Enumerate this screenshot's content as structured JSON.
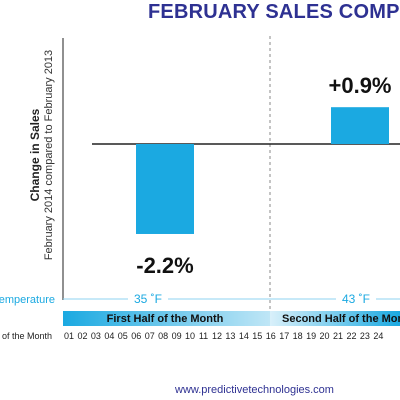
{
  "chart_data": {
    "type": "bar",
    "title": "FEBRUARY SALES COMPS",
    "ylabel": "Change in Sales",
    "ylabel_sub": "February 2014 compared to February 2013",
    "categories": [
      "First Half of the Month",
      "Second Half of the Month"
    ],
    "values": [
      -2.2,
      0.9
    ],
    "value_labels": [
      "-2.2%",
      "+0.9%"
    ],
    "ylim": [
      -3.0,
      1.2
    ],
    "temperature_label": "Temperature",
    "temperatures": [
      "35 ˚F",
      "43 ˚F"
    ],
    "day_axis_label": "Day of the Month",
    "days": [
      "01",
      "02",
      "03",
      "04",
      "05",
      "06",
      "07",
      "08",
      "09",
      "10",
      "11",
      "12",
      "13",
      "14",
      "15",
      "16",
      "17",
      "18",
      "19",
      "20",
      "21",
      "22",
      "23",
      "24"
    ],
    "half_labels": [
      "First Half of the Month",
      "Second Half of the Month"
    ],
    "bar_color": "#1ba9e1",
    "title_color": "#2e3192",
    "temperature_color": "#1ba9e1"
  },
  "footer": "www.predictivetechnologies.com"
}
